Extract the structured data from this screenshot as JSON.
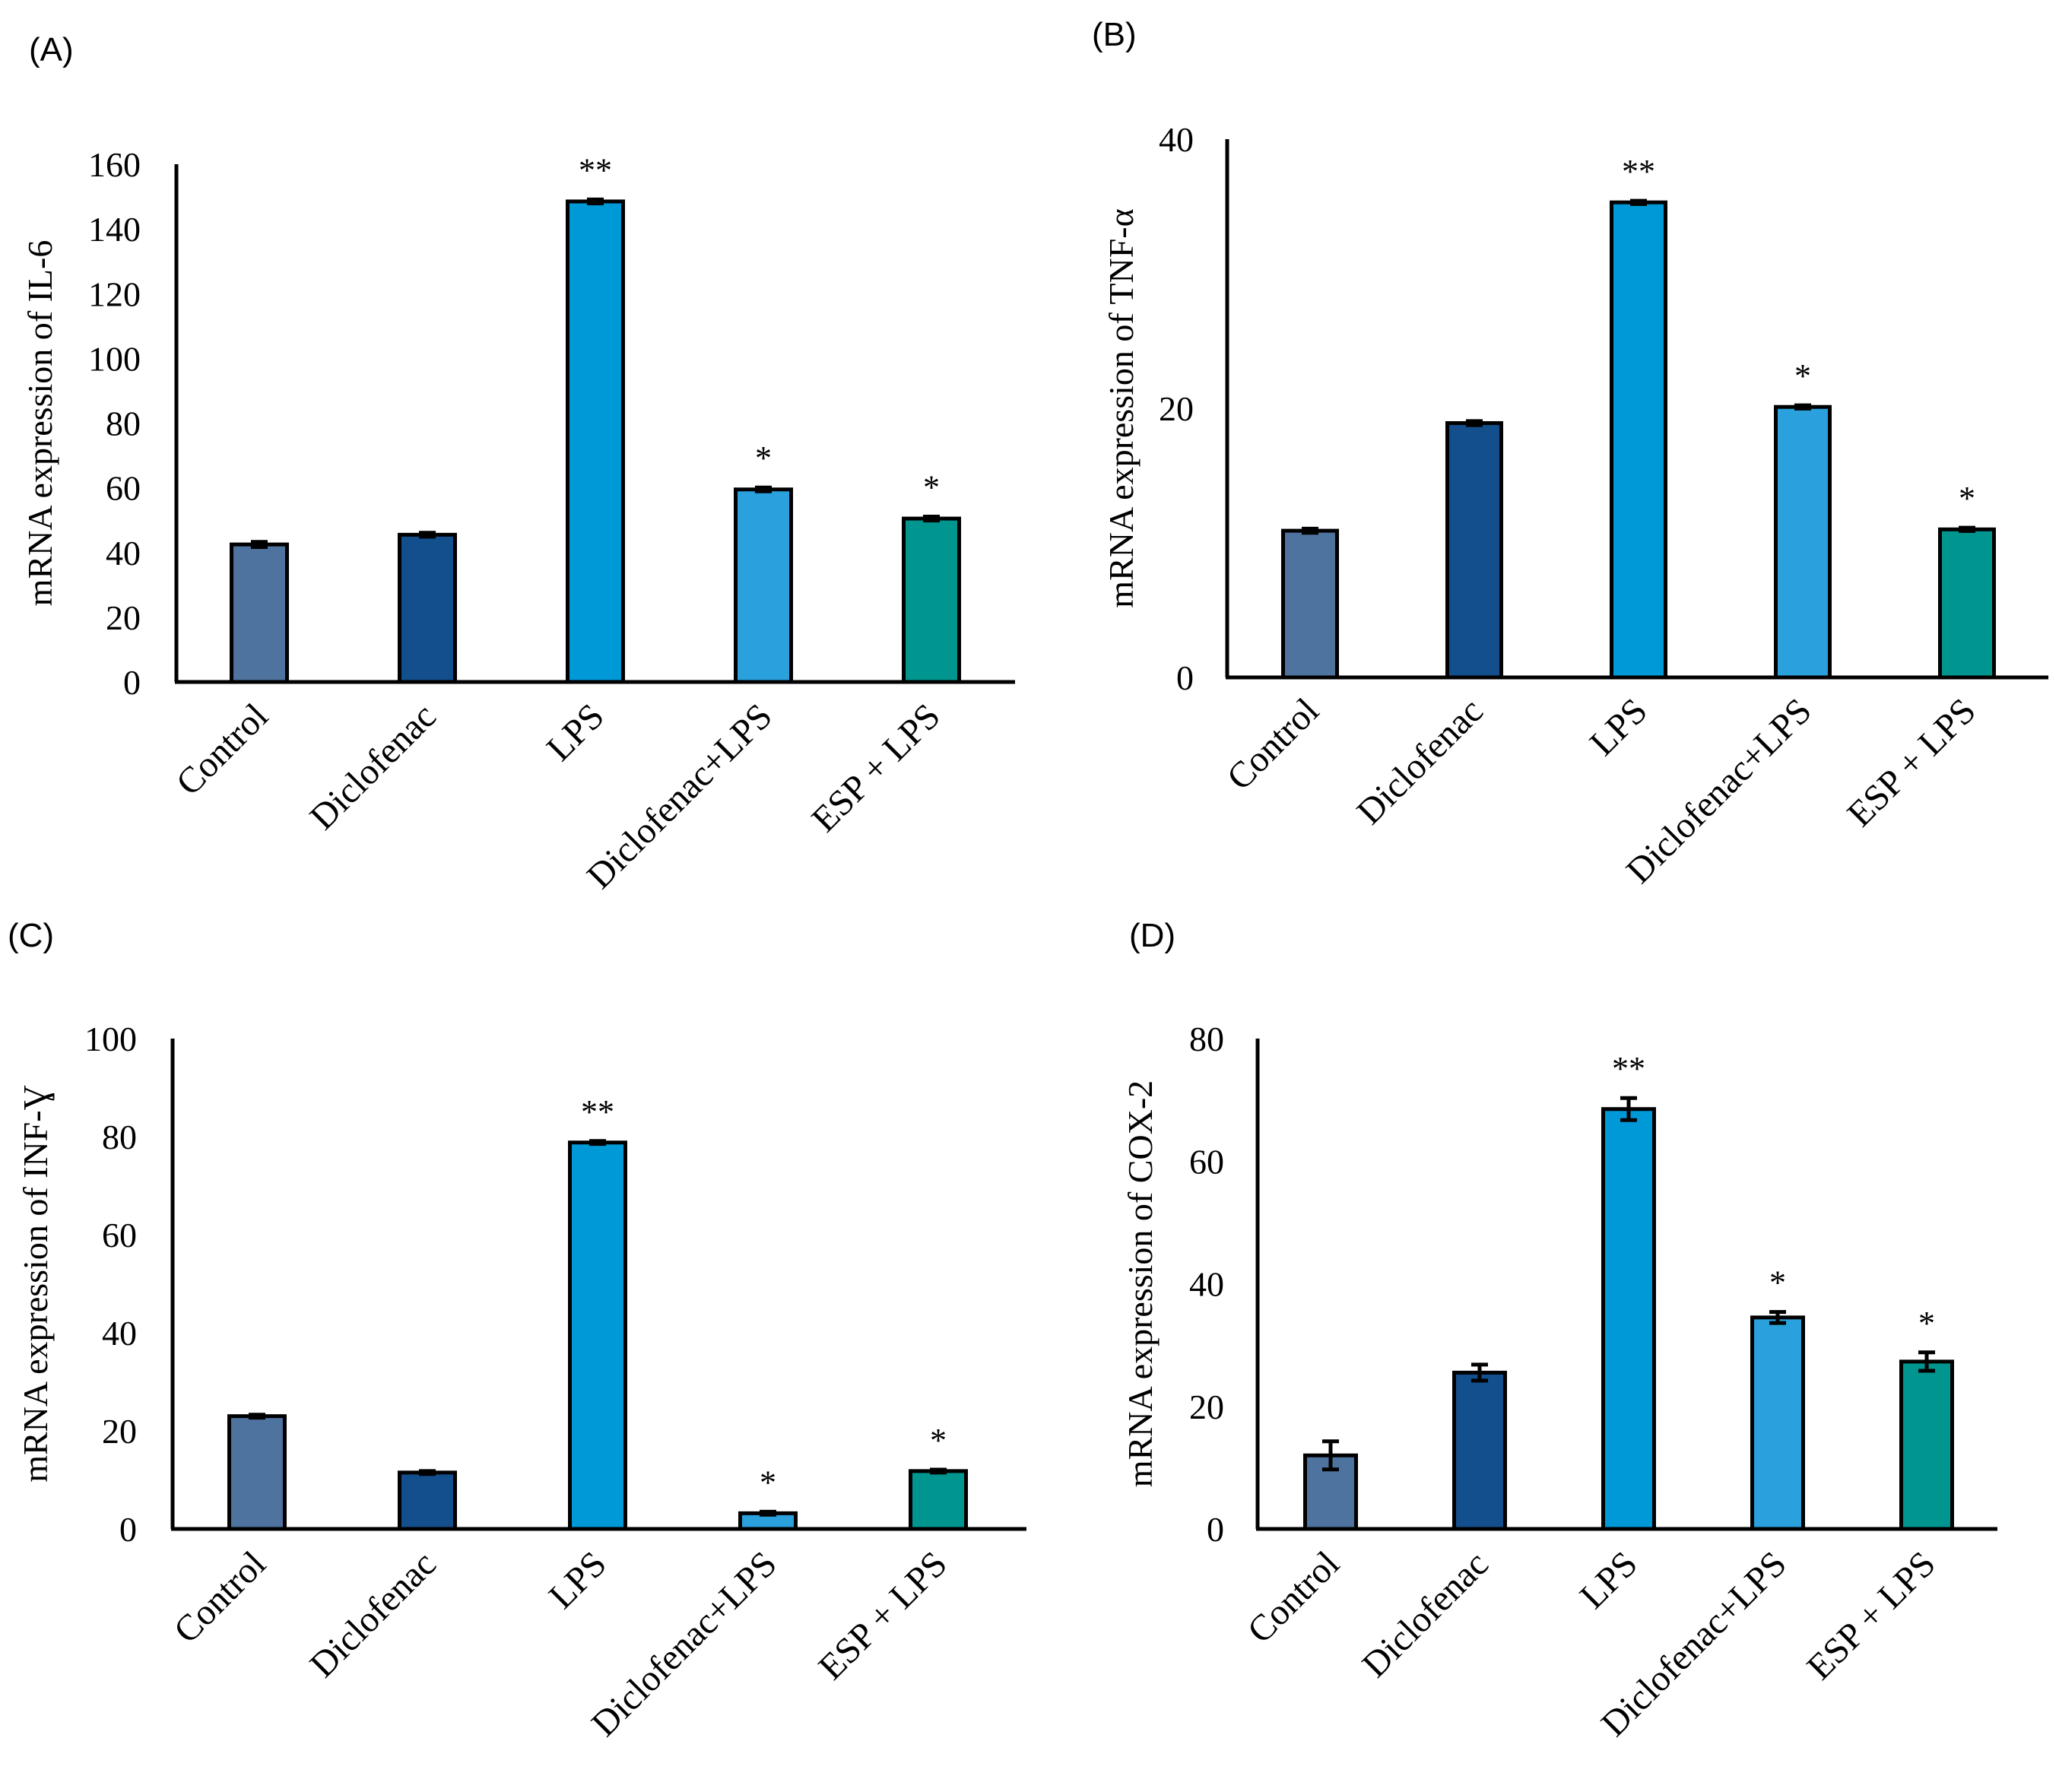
{
  "chart_data": [
    {
      "type": "bar",
      "panel_label": "(A)",
      "title": "",
      "xlabel": "",
      "ylabel": "mRNA expression of IL-6",
      "categories": [
        "Control",
        "Diclofenac",
        "LPS",
        "Diclofenac+LPS",
        "ESP + LPS"
      ],
      "values": [
        42.5,
        45.5,
        148.5,
        59.5,
        50.5
      ],
      "errors": [
        0.8,
        0.6,
        0.6,
        0.6,
        0.6
      ],
      "significance": [
        "",
        "",
        "**",
        "*",
        "*"
      ],
      "colors": [
        "#4f739f",
        "#134f8c",
        "#0099d8",
        "#2aa1dd",
        "#00968f"
      ],
      "ylim": [
        0,
        160
      ],
      "yticks": [
        0,
        20,
        40,
        60,
        80,
        100,
        120,
        140,
        160
      ]
    },
    {
      "type": "bar",
      "panel_label": "(B)",
      "title": "",
      "xlabel": "",
      "ylabel": "mRNA expression of TNF-α",
      "categories": [
        "Control",
        "Diclofenac",
        "LPS",
        "Diclofenac+LPS",
        "ESP + LPS"
      ],
      "values": [
        10.9,
        18.9,
        35.3,
        20.1,
        11.0
      ],
      "errors": [
        0.15,
        0.15,
        0.12,
        0.12,
        0.12
      ],
      "significance": [
        "",
        "",
        "**",
        "*",
        "*"
      ],
      "colors": [
        "#4f739f",
        "#134f8c",
        "#0099d8",
        "#2aa1dd",
        "#00968f"
      ],
      "ylim": [
        0,
        40
      ],
      "yticks": [
        0,
        20,
        40
      ]
    },
    {
      "type": "bar",
      "panel_label": "(C)",
      "title": "",
      "xlabel": "",
      "ylabel": "mRNA expression of INF-Ɣ",
      "categories": [
        "Control",
        "Diclofenac",
        "LPS",
        "Diclofenac+LPS",
        "ESP + LPS"
      ],
      "values": [
        23,
        11.5,
        78.8,
        3.2,
        11.8
      ],
      "errors": [
        0.3,
        0.3,
        0.3,
        0.3,
        0.3
      ],
      "significance": [
        "",
        "",
        "**",
        "*",
        "*"
      ],
      "colors": [
        "#4f739f",
        "#134f8c",
        "#0099d8",
        "#2aa1dd",
        "#00968f"
      ],
      "ylim": [
        0,
        100
      ],
      "yticks": [
        0,
        20,
        40,
        60,
        80,
        100
      ]
    },
    {
      "type": "bar",
      "panel_label": "(D)",
      "title": "",
      "xlabel": "",
      "ylabel": "mRNA expression of COX-2",
      "categories": [
        "Control",
        "Diclofenac",
        "LPS",
        "Diclofenac+LPS",
        "ESP + LPS"
      ],
      "values": [
        12,
        25.5,
        68.5,
        34.5,
        27.3
      ],
      "errors": [
        2.3,
        1.3,
        1.8,
        0.9,
        1.5
      ],
      "significance": [
        "",
        "",
        "**",
        "*",
        "*"
      ],
      "colors": [
        "#4f739f",
        "#134f8c",
        "#0099d8",
        "#2aa1dd",
        "#00968f"
      ],
      "ylim": [
        0,
        80
      ],
      "yticks": [
        0,
        20,
        40,
        60,
        80
      ]
    }
  ]
}
